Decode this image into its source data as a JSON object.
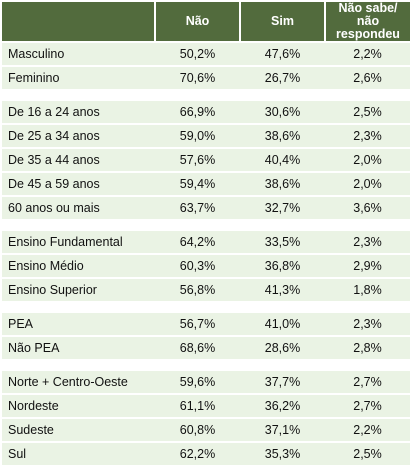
{
  "table": {
    "headers": [
      "",
      "Não",
      "Sim",
      "Não sabe/\nnão respondeu"
    ],
    "groups": [
      {
        "rows": [
          {
            "label": "Masculino",
            "nao": "50,2%",
            "sim": "47,6%",
            "ns": "2,2%"
          },
          {
            "label": "Feminino",
            "nao": "70,6%",
            "sim": "26,7%",
            "ns": "2,6%"
          }
        ]
      },
      {
        "rows": [
          {
            "label": "De 16 a 24 anos",
            "nao": "66,9%",
            "sim": "30,6%",
            "ns": "2,5%"
          },
          {
            "label": "De 25 a 34 anos",
            "nao": "59,0%",
            "sim": "38,6%",
            "ns": "2,3%"
          },
          {
            "label": "De 35 a 44 anos",
            "nao": "57,6%",
            "sim": "40,4%",
            "ns": "2,0%"
          },
          {
            "label": "De 45 a 59 anos",
            "nao": "59,4%",
            "sim": "38,6%",
            "ns": "2,0%"
          },
          {
            "label": "60 anos ou mais",
            "nao": "63,7%",
            "sim": "32,7%",
            "ns": "3,6%"
          }
        ]
      },
      {
        "rows": [
          {
            "label": "Ensino Fundamental",
            "nao": "64,2%",
            "sim": "33,5%",
            "ns": "2,3%"
          },
          {
            "label": "Ensino Médio",
            "nao": "60,3%",
            "sim": "36,8%",
            "ns": "2,9%"
          },
          {
            "label": "Ensino Superior",
            "nao": "56,8%",
            "sim": "41,3%",
            "ns": "1,8%"
          }
        ]
      },
      {
        "rows": [
          {
            "label": "PEA",
            "nao": "56,7%",
            "sim": "41,0%",
            "ns": "2,3%"
          },
          {
            "label": "Não PEA",
            "nao": "68,6%",
            "sim": "28,6%",
            "ns": "2,8%"
          }
        ]
      },
      {
        "rows": [
          {
            "label": "Norte + Centro-Oeste",
            "nao": "59,6%",
            "sim": "37,7%",
            "ns": "2,7%"
          },
          {
            "label": "Nordeste",
            "nao": "61,1%",
            "sim": "36,2%",
            "ns": "2,7%"
          },
          {
            "label": "Sudeste",
            "nao": "60,8%",
            "sim": "37,1%",
            "ns": "2,2%"
          },
          {
            "label": "Sul",
            "nao": "62,2%",
            "sim": "35,3%",
            "ns": "2,5%"
          }
        ]
      }
    ]
  },
  "colors": {
    "header_bg": "#526b3d",
    "header_text": "#ffffff",
    "row_bg": "#eaf3e4",
    "divider": "#ffffff"
  }
}
